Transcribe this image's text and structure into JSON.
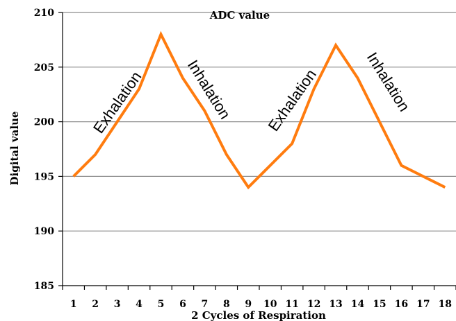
{
  "chart_data": {
    "type": "line",
    "title": "ADC value",
    "xlabel": "2 Cycles of Respiration",
    "ylabel": "Digital value",
    "x": [
      1,
      2,
      3,
      4,
      5,
      6,
      7,
      8,
      9,
      10,
      11,
      12,
      13,
      14,
      15,
      16,
      17,
      18
    ],
    "series": [
      {
        "values": [
          195,
          197,
          200,
          203,
          208,
          204,
          201,
          197,
          194,
          196,
          198,
          203,
          207,
          204,
          200,
          196,
          195,
          194
        ],
        "color": "#ff7c0f"
      }
    ],
    "ylim": [
      185,
      210
    ],
    "yticks": [
      185,
      190,
      195,
      200,
      205,
      210
    ],
    "grid": "horizontal",
    "annotations": [
      {
        "text": "Exhalation",
        "x": 3.2,
        "y": 201.5
      },
      {
        "text": "Inhalation",
        "x": 7.0,
        "y": 202.7
      },
      {
        "text": "Exhalation",
        "x": 11.2,
        "y": 201.7
      },
      {
        "text": "Inhalation",
        "x": 15.2,
        "y": 203.4
      }
    ]
  }
}
